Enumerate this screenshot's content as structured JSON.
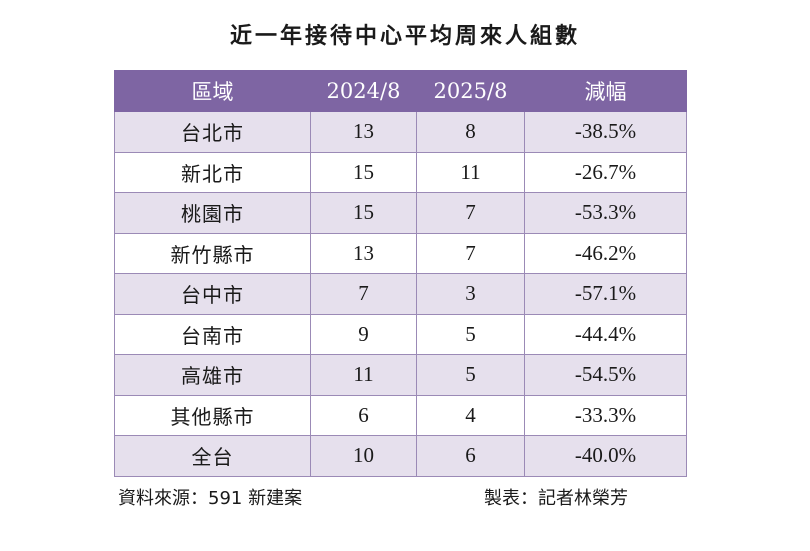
{
  "title": "近一年接待中心平均周來人組數",
  "table": {
    "headers": [
      "區域",
      "2024/8",
      "2025/8",
      "減幅"
    ],
    "rows": [
      {
        "region": "台北市",
        "y2024": "13",
        "y2025": "8",
        "change": "-38.5%"
      },
      {
        "region": "新北市",
        "y2024": "15",
        "y2025": "11",
        "change": "-26.7%"
      },
      {
        "region": "桃園市",
        "y2024": "15",
        "y2025": "7",
        "change": "-53.3%"
      },
      {
        "region": "新竹縣市",
        "y2024": "13",
        "y2025": "7",
        "change": "-46.2%"
      },
      {
        "region": "台中市",
        "y2024": "7",
        "y2025": "3",
        "change": "-57.1%"
      },
      {
        "region": "台南市",
        "y2024": "9",
        "y2025": "5",
        "change": "-44.4%"
      },
      {
        "region": "高雄市",
        "y2024": "11",
        "y2025": "5",
        "change": "-54.5%"
      },
      {
        "region": "其他縣市",
        "y2024": "6",
        "y2025": "4",
        "change": "-33.3%"
      },
      {
        "region": "全台",
        "y2024": "10",
        "y2025": "6",
        "change": "-40.0%"
      }
    ]
  },
  "footer": {
    "source": "資料來源：591 新建案",
    "credit": "製表：記者林榮芳"
  },
  "colors": {
    "header_bg": "#7e65a3",
    "band_bg": "#e6e0ed",
    "border": "#9b8ab6"
  }
}
